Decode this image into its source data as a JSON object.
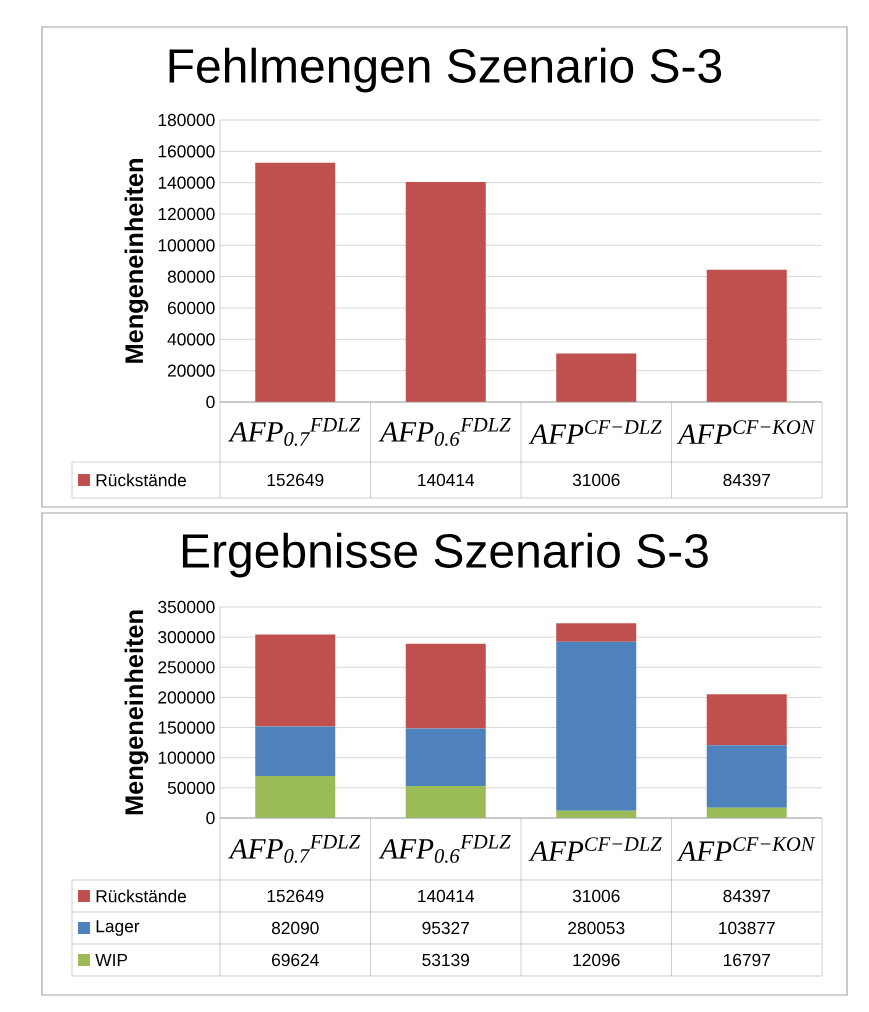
{
  "chart_data": [
    {
      "type": "bar",
      "title": "Fehlmengen Szenario S-3",
      "ylabel": "Mengeneinheiten",
      "categories": [
        "AFP$_{0.7}$$^{FDLZ}$",
        "AFP$_{0.6}$$^{FDLZ}$",
        "AFP$^{CF−DLZ}$",
        "AFP$^{CF−KON}$"
      ],
      "series": [
        {
          "name": "Rückstände",
          "color": "#c0504d",
          "values": [
            152649,
            140414,
            31006,
            84397
          ]
        }
      ],
      "ylim": [
        0,
        180000
      ],
      "yticks": [
        0,
        20000,
        40000,
        60000,
        80000,
        100000,
        120000,
        140000,
        160000,
        180000
      ],
      "grid": "y",
      "data_labels": true,
      "legend": "bottom"
    },
    {
      "type": "bar",
      "title": "Ergebnisse Szenario S-3",
      "ylabel": "Mengeneinheiten",
      "stacked": true,
      "categories": [
        "AFP$_{0.7}$$^{FDLZ}$",
        "AFP$_{0.6}$$^{FDLZ}$",
        "AFP$^{CF−DLZ}$",
        "AFP$^{CF−KON}$"
      ],
      "series": [
        {
          "name": "WIP",
          "color": "#9bbb59",
          "values": [
            69624,
            53139,
            12096,
            16797
          ]
        },
        {
          "name": "Lager",
          "color": "#4f81bd",
          "values": [
            82090,
            95327,
            280053,
            103877
          ]
        },
        {
          "name": "Rückstände",
          "color": "#c0504d",
          "values": [
            152649,
            140414,
            31006,
            84397
          ]
        }
      ],
      "ylim": [
        0,
        350000
      ],
      "yticks": [
        0,
        50000,
        100000,
        150000,
        200000,
        250000,
        300000,
        350000
      ],
      "grid": "y",
      "data_labels": true,
      "legend": "bottom"
    }
  ]
}
